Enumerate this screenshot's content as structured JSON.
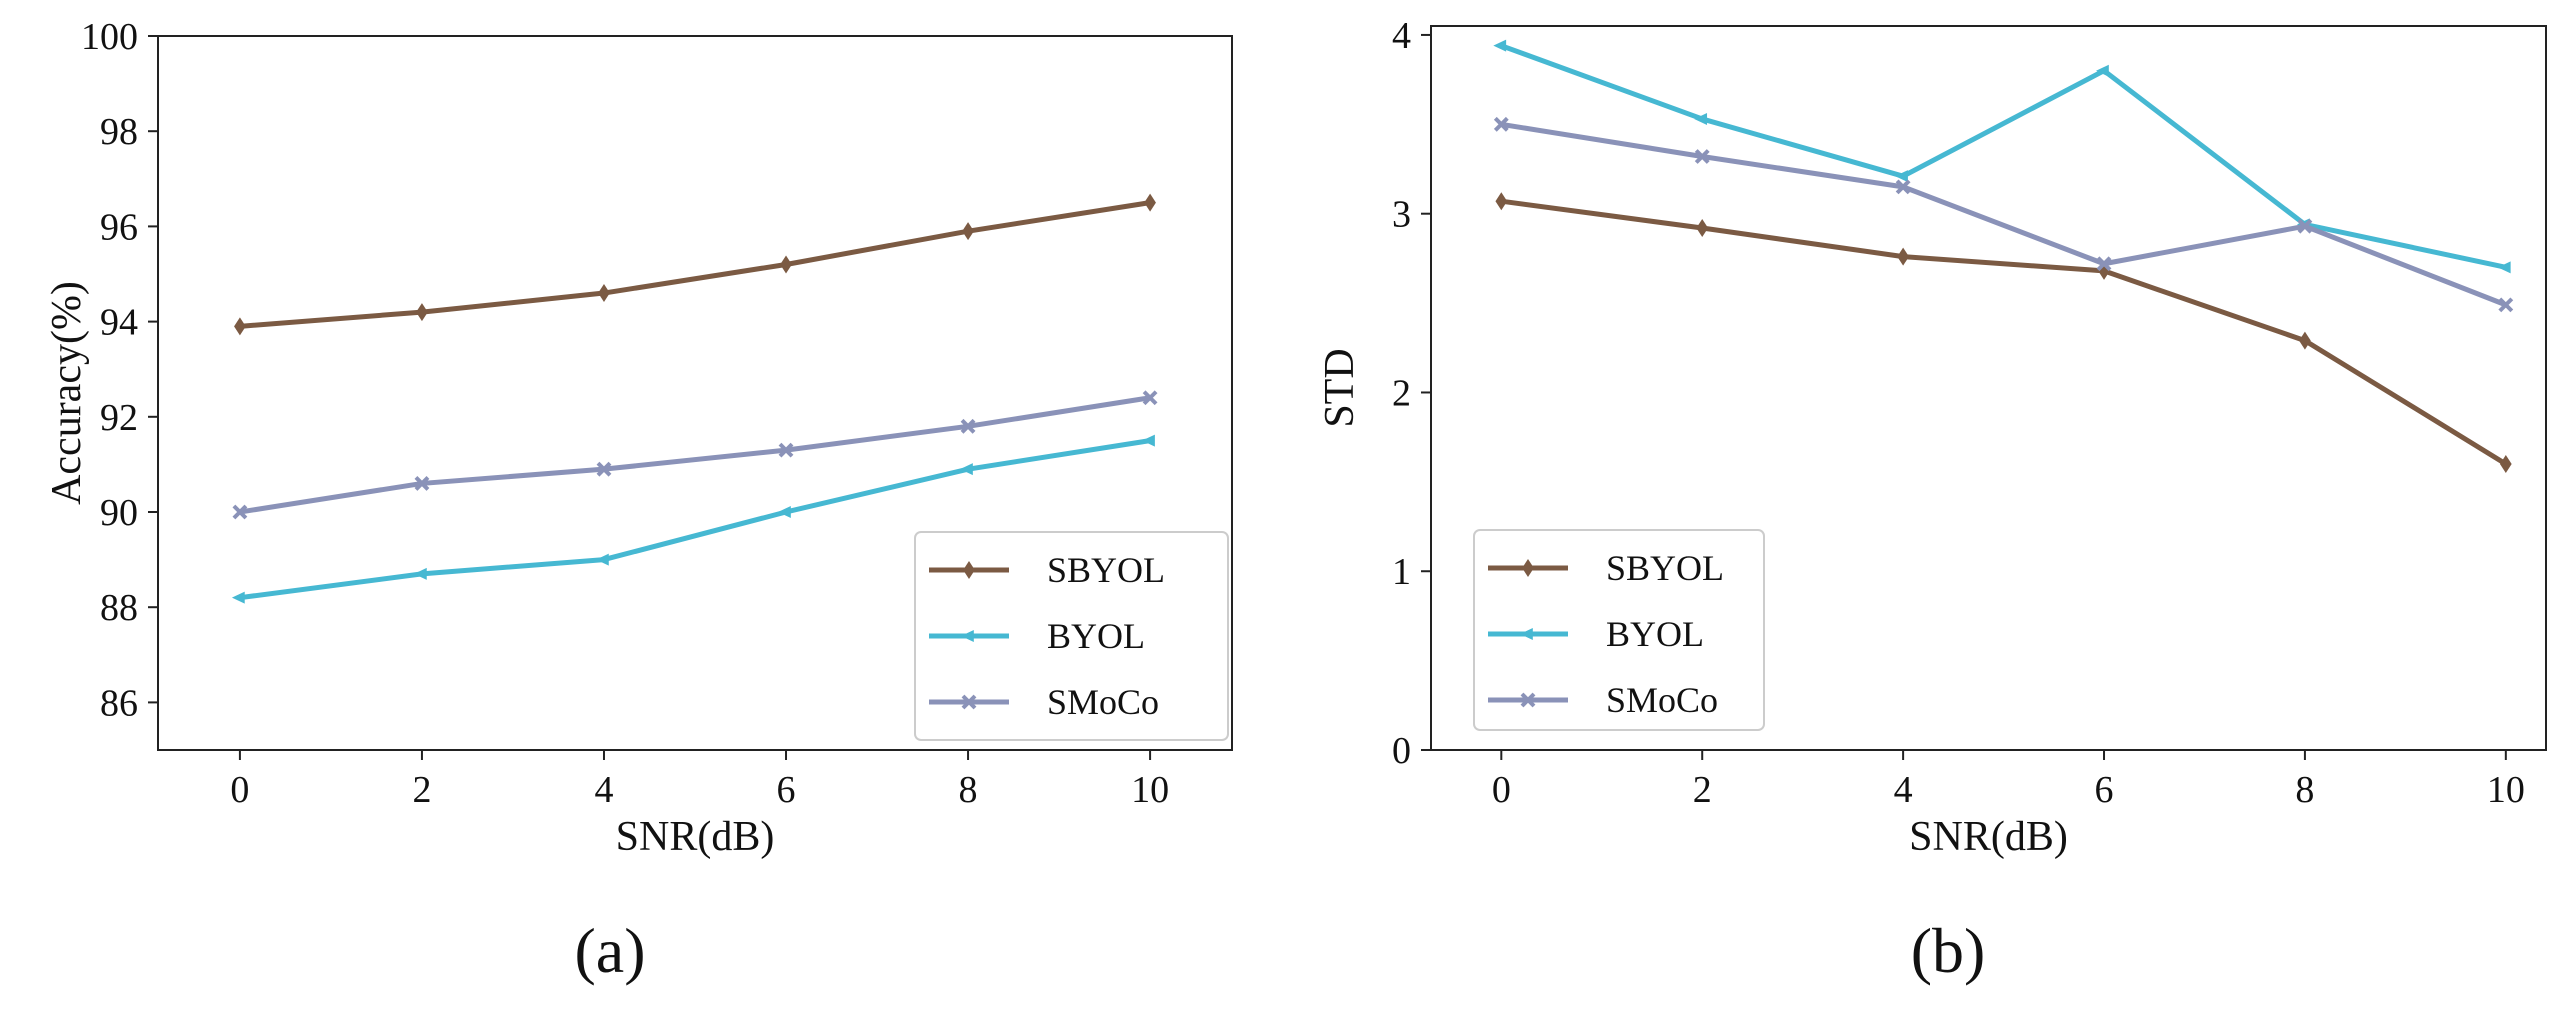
{
  "chart_data": [
    {
      "type": "line",
      "panel_label": "(a)",
      "title": "",
      "xlabel": "SNR(dB)",
      "ylabel": "Accuracy(%)",
      "x": [
        0,
        2,
        4,
        6,
        8,
        10
      ],
      "xticks": [
        "0",
        "2",
        "4",
        "6",
        "8",
        "10"
      ],
      "xlim": [
        -0.9,
        10.9
      ],
      "yticks": [
        "86",
        "88",
        "90",
        "92",
        "94",
        "96",
        "98",
        "100"
      ],
      "ylim": [
        85,
        100
      ],
      "grid": false,
      "legend_position": "lower-right",
      "series": [
        {
          "name": "SBYOL",
          "color": "#7b5a43",
          "marker": "diamond",
          "values": [
            93.9,
            94.2,
            94.6,
            95.2,
            95.9,
            96.5
          ]
        },
        {
          "name": "BYOL",
          "color": "#46b8d2",
          "marker": "triangle-left",
          "values": [
            88.2,
            88.7,
            89.0,
            90.0,
            90.9,
            91.5
          ]
        },
        {
          "name": "SMoCo",
          "color": "#8a92b8",
          "marker": "x",
          "values": [
            90.0,
            90.6,
            90.9,
            91.3,
            91.8,
            92.4
          ]
        }
      ]
    },
    {
      "type": "line",
      "panel_label": "(b)",
      "title": "",
      "xlabel": "SNR(dB)",
      "ylabel": "STD",
      "x": [
        0,
        2,
        4,
        6,
        8,
        10
      ],
      "xticks": [
        "0",
        "2",
        "4",
        "6",
        "8",
        "10"
      ],
      "xlim": [
        -0.7,
        10.4
      ],
      "yticks": [
        "0",
        "1",
        "2",
        "3",
        "4"
      ],
      "ylim": [
        0,
        4.05
      ],
      "grid": false,
      "legend_position": "lower-left",
      "series": [
        {
          "name": "SBYOL",
          "color": "#7b5a43",
          "marker": "diamond",
          "values": [
            3.07,
            2.92,
            2.76,
            2.68,
            2.29,
            1.6
          ]
        },
        {
          "name": "BYOL",
          "color": "#46b8d2",
          "marker": "triangle-left",
          "values": [
            3.94,
            3.53,
            3.21,
            3.8,
            2.94,
            2.7
          ]
        },
        {
          "name": "SMoCo",
          "color": "#8a92b8",
          "marker": "x",
          "values": [
            3.5,
            3.32,
            3.15,
            2.72,
            2.93,
            2.49
          ]
        }
      ]
    }
  ]
}
